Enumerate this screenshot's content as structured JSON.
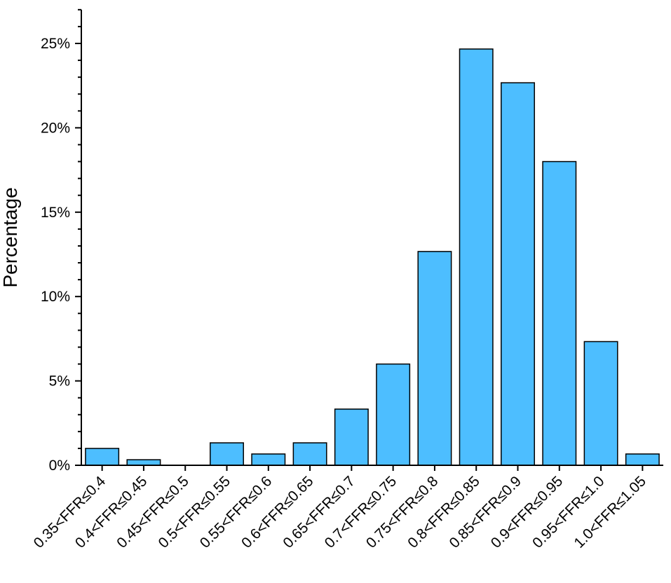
{
  "chart_data": {
    "type": "bar",
    "title": "",
    "xlabel": "",
    "ylabel": "Percentage",
    "ylim": [
      0,
      27
    ],
    "yticks": [
      0,
      5,
      10,
      15,
      20,
      25
    ],
    "ytick_labels": [
      "0%",
      "5%",
      "10%",
      "15%",
      "20%",
      "25%"
    ],
    "y_minor_step": 1,
    "grid": false,
    "legend": "none",
    "categories": [
      "0.35<FFR≤0.4",
      "0.4<FFR≤0.45",
      "0.45<FFR≤0.5",
      "0.5<FFR≤0.55",
      "0.55<FFR≤0.6",
      "0.6<FFR≤0.65",
      "0.65<FFR≤0.7",
      "0.7<FFR≤0.75",
      "0.75<FFR≤0.8",
      "0.8<FFR≤0.85",
      "0.85<FFR≤0.9",
      "0.9<FFR≤0.95",
      "0.95<FFR≤1.0",
      "1.0<FFR≤1.05"
    ],
    "values": [
      1.0,
      0.33,
      0,
      1.33,
      0.67,
      1.33,
      3.33,
      6.0,
      12.67,
      24.67,
      22.67,
      18.0,
      7.33,
      0.67
    ],
    "bar_color": "#4dbeff",
    "bar_edge_color": "#000000"
  }
}
